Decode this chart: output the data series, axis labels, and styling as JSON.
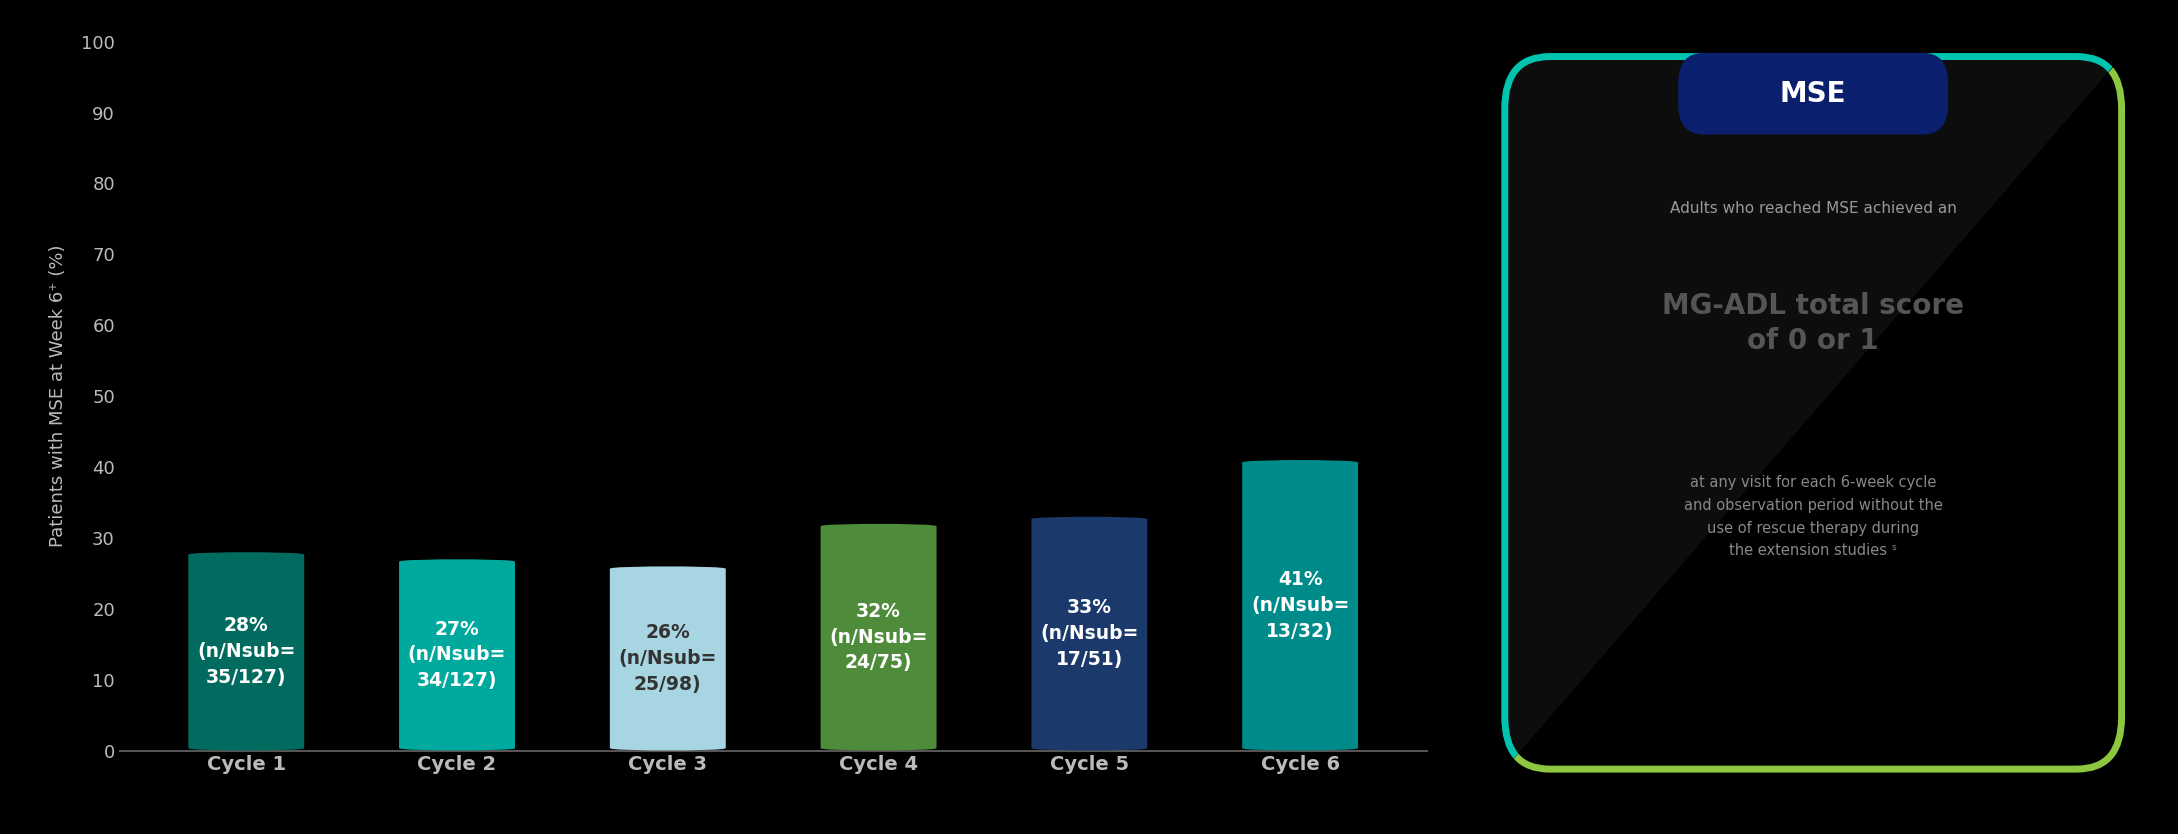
{
  "categories": [
    "Cycle 1",
    "Cycle 2",
    "Cycle 3",
    "Cycle 4",
    "Cycle 5",
    "Cycle 6"
  ],
  "values": [
    28,
    27,
    26,
    32,
    33,
    41
  ],
  "bar_colors": [
    "#006B5E",
    "#00A99D",
    "#A8D5E2",
    "#4E8B3A",
    "#1B3A6B",
    "#008B8B"
  ],
  "bar_labels": [
    "28%\n(n/Nsub=\n35/127)",
    "27%\n(n/Nsub=\n34/127)",
    "26%\n(n/Nsub=\n25/98)",
    "32%\n(n/Nsub=\n24/75)",
    "33%\n(n/Nsub=\n17/51)",
    "41%\n(n/Nsub=\n13/32)"
  ],
  "label_colors": [
    "#ffffff",
    "#ffffff",
    "#333333",
    "#ffffff",
    "#ffffff",
    "#ffffff"
  ],
  "ylabel": "Patients with MSE at Week 6⁺ (%)",
  "ylim": [
    0,
    100
  ],
  "yticks": [
    0,
    10,
    20,
    30,
    40,
    50,
    60,
    70,
    80,
    90,
    100
  ],
  "background_color": "#000000",
  "text_color": "#bbbbbb",
  "axis_color": "#555555",
  "box_title": "MSE",
  "box_line1": "Adults who reached MSE achieved an",
  "box_line2": "MG-ADL total score\nof 0 or 1",
  "box_line3": "at any visit for each 6-week cycle\nand observation period without the\nuse of rescue therapy during\nthe extension studies ˢ"
}
